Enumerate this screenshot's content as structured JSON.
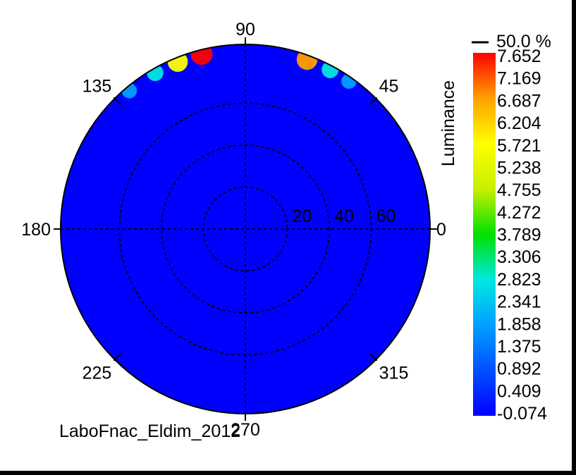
{
  "chart_data": {
    "type": "heatmap",
    "title": "",
    "footer_text": "LaboFnac_Eldim_2012",
    "angle_labels": [
      "0",
      "45",
      "90",
      "135",
      "180",
      "225",
      "270",
      "315"
    ],
    "radial_ticks": [
      "20",
      "40",
      "60"
    ],
    "radial_rings": [
      20,
      40,
      60
    ],
    "radial_max": 88,
    "colorbar": {
      "label": "Luminance",
      "top_marker": "50.0 %",
      "tick_labels": [
        "7.652",
        "7.169",
        "6.687",
        "6.204",
        "5.721",
        "5.238",
        "4.755",
        "4.272",
        "3.789",
        "3.306",
        "2.823",
        "2.341",
        "1.858",
        "1.375",
        "0.892",
        "0.409",
        "-0.074"
      ],
      "min": -0.074,
      "max": 7.652,
      "colors": [
        "#0000ff",
        "#0050ff",
        "#00a0ff",
        "#00e8e0",
        "#00e000",
        "#c8f000",
        "#ffff00",
        "#ffa000",
        "#ff0000"
      ]
    },
    "hotspots": [
      {
        "azimuth_deg": 104,
        "zenith_deg": 86,
        "luminance": 7.2
      },
      {
        "azimuth_deg": 112,
        "zenith_deg": 86,
        "luminance": 5.8
      },
      {
        "azimuth_deg": 120,
        "zenith_deg": 86,
        "luminance": 3.0
      },
      {
        "azimuth_deg": 130,
        "zenith_deg": 86,
        "luminance": 1.9
      },
      {
        "azimuth_deg": 70,
        "zenith_deg": 86,
        "luminance": 6.3
      },
      {
        "azimuth_deg": 62,
        "zenith_deg": 86,
        "luminance": 3.3
      },
      {
        "azimuth_deg": 55,
        "zenith_deg": 86,
        "luminance": 1.9
      }
    ],
    "background_luminance": 0.2,
    "grid": true
  }
}
